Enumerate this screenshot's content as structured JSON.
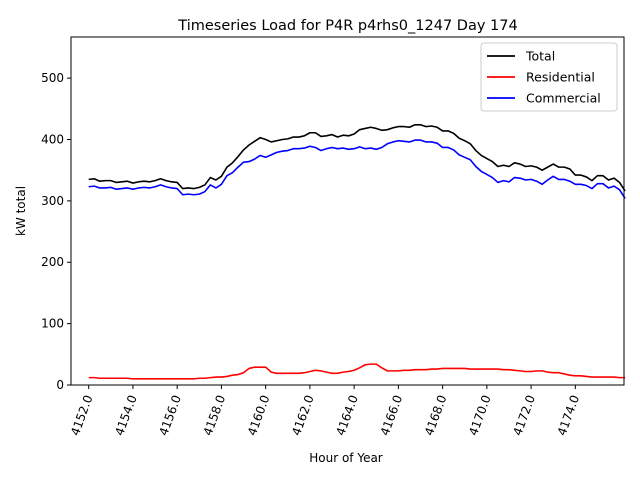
{
  "chart_data": {
    "type": "line",
    "title": "Timeseries Load for P4R p4rhs0_1247  Day 174",
    "xlabel": "Hour of Year",
    "ylabel": "kW total",
    "xlim": [
      4151.2,
      4176.2
    ],
    "ylim": [
      0,
      567
    ],
    "x_ticks": [
      4152,
      4154,
      4156,
      4158,
      4160,
      4162,
      4164,
      4166,
      4168,
      4170,
      4172,
      4174
    ],
    "x_tick_labels": [
      "4152.0",
      "4154.0",
      "4156.0",
      "4158.0",
      "4160.0",
      "4162.0",
      "4164.0",
      "4166.0",
      "4168.0",
      "4170.0",
      "4172.0",
      "4174.0"
    ],
    "y_ticks": [
      0,
      100,
      200,
      300,
      400,
      500
    ],
    "y_tick_labels": [
      "0",
      "100",
      "200",
      "300",
      "400",
      "500"
    ],
    "grid": false,
    "legend_position": "top-right",
    "x": {
      "start": 4152.0,
      "step": 0.25
    },
    "series": [
      {
        "name": "Total",
        "color": "#000000",
        "values": [
          335,
          336,
          332,
          333,
          333,
          330,
          331,
          332,
          329,
          331,
          332,
          331,
          333,
          336,
          333,
          331,
          330,
          320,
          321,
          320,
          322,
          326,
          338,
          334,
          340,
          355,
          362,
          372,
          383,
          391,
          397,
          403,
          400,
          396,
          398,
          400,
          401,
          404,
          404,
          406,
          411,
          411,
          405,
          406,
          408,
          404,
          407,
          406,
          409,
          416,
          418,
          420,
          418,
          415,
          416,
          419,
          421,
          421,
          420,
          424,
          424,
          421,
          422,
          420,
          414,
          414,
          410,
          402,
          398,
          393,
          382,
          374,
          369,
          364,
          356,
          358,
          356,
          362,
          360,
          356,
          357,
          355,
          350,
          355,
          360,
          355,
          355,
          352,
          342,
          342,
          339,
          333,
          341,
          341,
          334,
          337,
          330,
          316
        ]
      },
      {
        "name": "Residential",
        "color": "#ff0000",
        "values": [
          12,
          12,
          11,
          11,
          11,
          11,
          11,
          11,
          10,
          10,
          10,
          10,
          10,
          10,
          10,
          10,
          10,
          10,
          10,
          10,
          11,
          11,
          12,
          13,
          13,
          14,
          16,
          17,
          20,
          27,
          29,
          29,
          29,
          21,
          19,
          19,
          19,
          19,
          19,
          20,
          22,
          24,
          23,
          21,
          19,
          19,
          21,
          22,
          24,
          28,
          33,
          34,
          34,
          28,
          23,
          23,
          23,
          24,
          24,
          25,
          25,
          25,
          26,
          26,
          27,
          27,
          27,
          27,
          27,
          26,
          26,
          26,
          26,
          26,
          26,
          25,
          25,
          24,
          23,
          22,
          22,
          23,
          23,
          21,
          20,
          20,
          18,
          16,
          15,
          15,
          14,
          13,
          13,
          13,
          13,
          13,
          12,
          12
        ]
      },
      {
        "name": "Commercial",
        "color": "#0000ff",
        "values": [
          323,
          324,
          321,
          321,
          322,
          319,
          320,
          321,
          319,
          321,
          322,
          321,
          323,
          326,
          323,
          321,
          320,
          310,
          311,
          310,
          311,
          315,
          326,
          321,
          327,
          341,
          346,
          355,
          363,
          364,
          368,
          374,
          371,
          375,
          379,
          381,
          382,
          385,
          385,
          386,
          389,
          387,
          382,
          385,
          387,
          385,
          386,
          384,
          385,
          388,
          385,
          386,
          384,
          387,
          393,
          396,
          398,
          397,
          396,
          399,
          399,
          396,
          396,
          394,
          387,
          387,
          383,
          375,
          371,
          367,
          356,
          348,
          343,
          338,
          330,
          333,
          331,
          338,
          337,
          334,
          335,
          332,
          327,
          334,
          340,
          335,
          335,
          332,
          327,
          327,
          325,
          320,
          328,
          328,
          321,
          324,
          318,
          304
        ]
      }
    ]
  }
}
